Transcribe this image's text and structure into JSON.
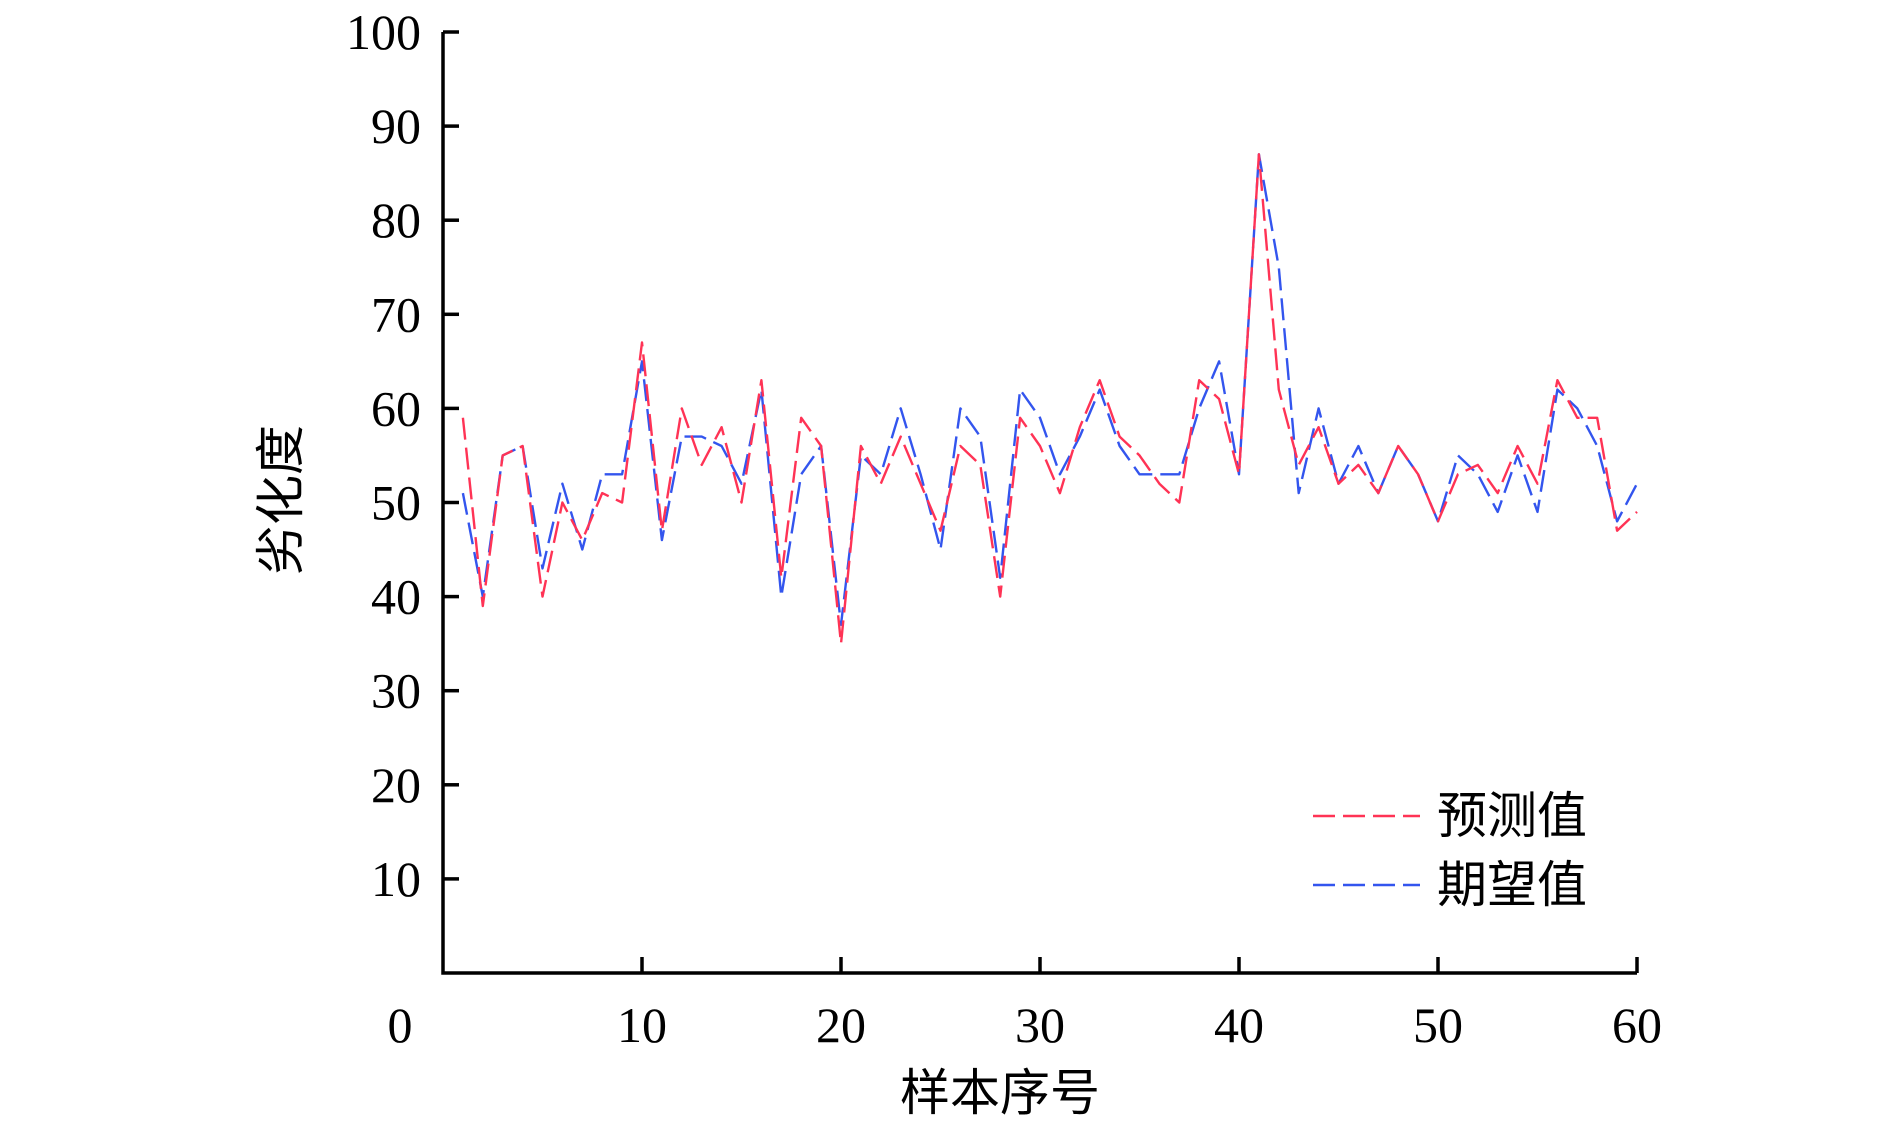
{
  "chart_data": {
    "type": "line",
    "xlabel": "样本序号",
    "ylabel": "劣化度",
    "xlim": [
      0,
      60
    ],
    "ylim": [
      0,
      100
    ],
    "x_ticks": [
      0,
      10,
      20,
      30,
      40,
      50,
      60
    ],
    "y_ticks": [
      10,
      20,
      30,
      40,
      50,
      60,
      70,
      80,
      90,
      100
    ],
    "x_tick_labels": [
      "0",
      "10",
      "20",
      "30",
      "40",
      "50",
      "60"
    ],
    "y_tick_labels": [
      "10",
      "20",
      "30",
      "40",
      "50",
      "60",
      "70",
      "80",
      "90",
      "100"
    ],
    "legend_position": "bottom-right",
    "x": [
      1,
      2,
      3,
      4,
      5,
      6,
      7,
      8,
      9,
      10,
      11,
      12,
      13,
      14,
      15,
      16,
      17,
      18,
      19,
      20,
      21,
      22,
      23,
      24,
      25,
      26,
      27,
      28,
      29,
      30,
      31,
      32,
      33,
      34,
      35,
      36,
      37,
      38,
      39,
      40,
      41,
      42,
      43,
      44,
      45,
      46,
      47,
      48,
      49,
      50,
      51,
      52,
      53,
      54,
      55,
      56,
      57,
      58,
      59,
      60
    ],
    "series": [
      {
        "name": "预测值",
        "color": "#ff3355",
        "values": [
          59,
          39,
          55,
          56,
          40,
          50,
          46,
          51,
          50,
          67,
          47,
          60,
          54,
          58,
          50,
          63,
          42,
          59,
          56,
          35,
          56,
          52,
          57,
          52,
          47,
          56,
          54,
          40,
          59,
          56,
          51,
          58,
          63,
          57,
          55,
          52,
          50,
          63,
          61,
          53,
          87,
          62,
          54,
          58,
          52,
          54,
          51,
          56,
          53,
          48,
          53,
          54,
          51,
          56,
          52,
          63,
          59,
          59,
          47,
          49
        ]
      },
      {
        "name": "期望值",
        "color": "#3355ee",
        "values": [
          51,
          40,
          55,
          56,
          43,
          52,
          45,
          53,
          53,
          65,
          46,
          57,
          57,
          56,
          52,
          62,
          40,
          53,
          56,
          37,
          55,
          53,
          60,
          53,
          45,
          60,
          57,
          42,
          62,
          59,
          53,
          57,
          62,
          56,
          53,
          53,
          53,
          60,
          65,
          53,
          87,
          75,
          51,
          60,
          52,
          56,
          51,
          56,
          53,
          48,
          55,
          53,
          49,
          55,
          49,
          62,
          60,
          56,
          48,
          52
        ]
      }
    ]
  }
}
